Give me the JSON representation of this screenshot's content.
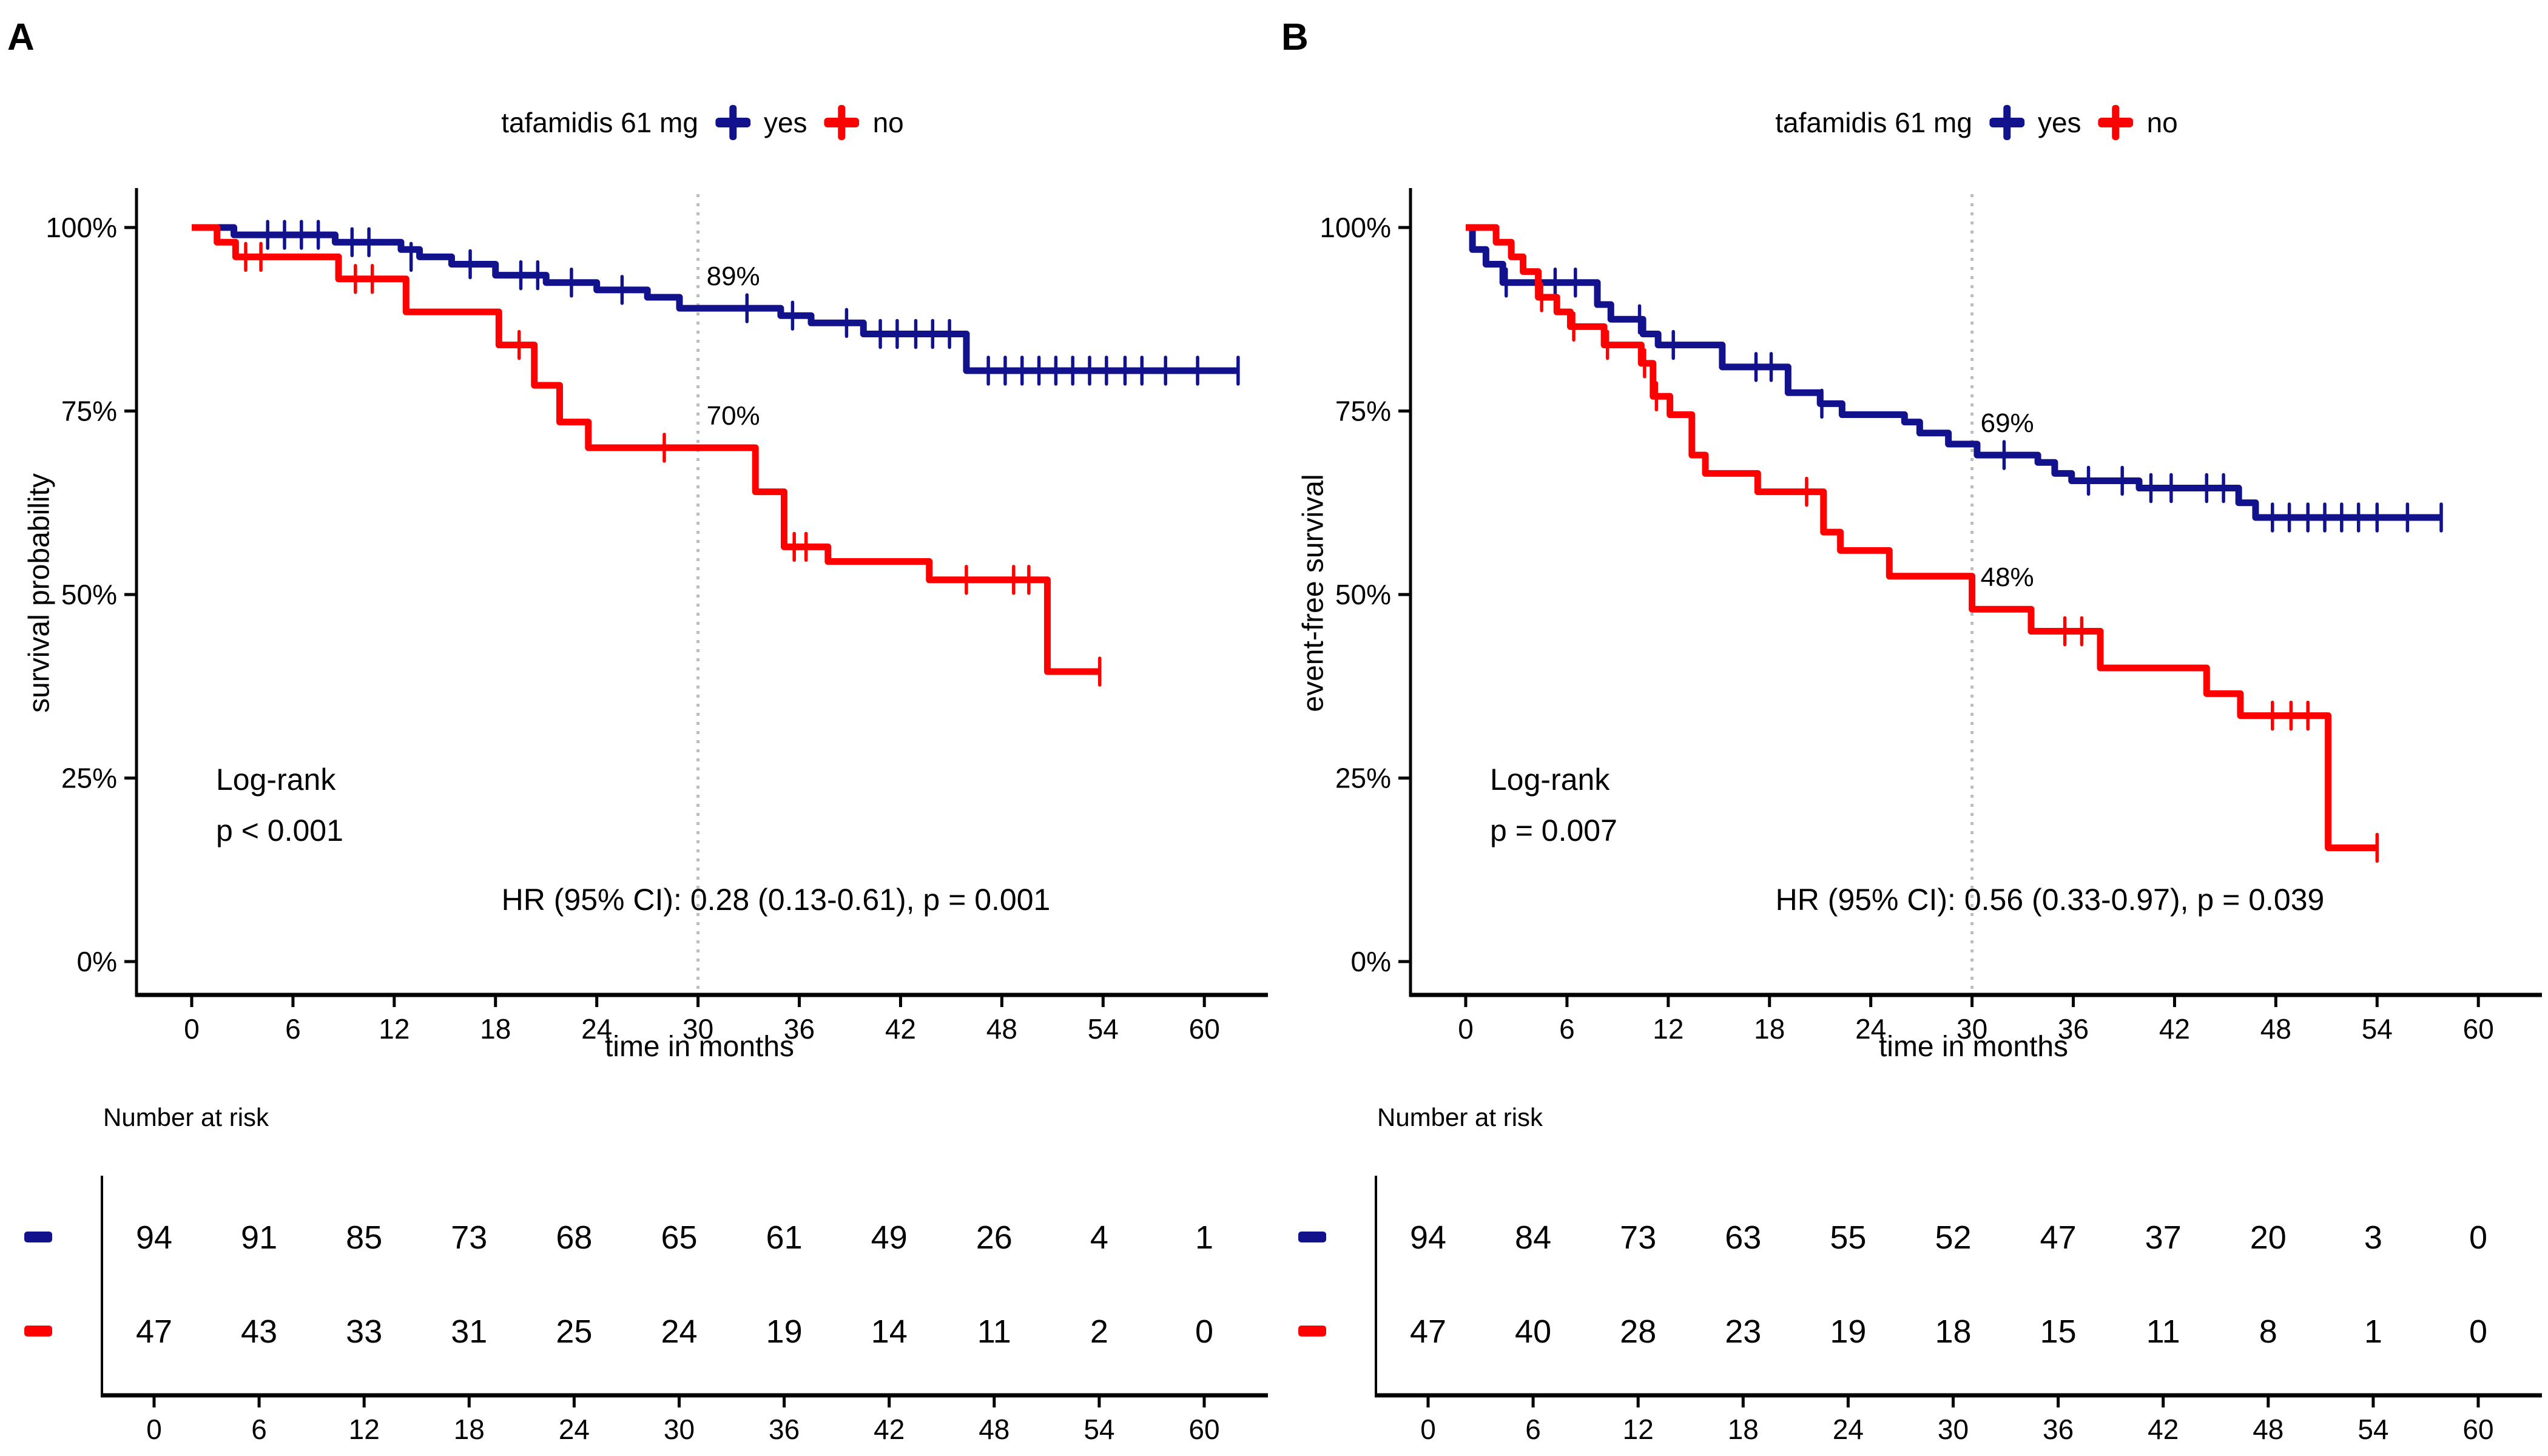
{
  "colors": {
    "navy": "#12128C",
    "red": "#FF0000",
    "axis": "#000000",
    "vline": "#BDBDBD",
    "text": "#000000"
  },
  "chart_data": [
    {
      "type": "km_step",
      "panel_label": "A",
      "legend": {
        "title": "tafamidis 61 mg",
        "items": [
          {
            "label": "yes",
            "color_key": "navy"
          },
          {
            "label": "no",
            "color_key": "red"
          }
        ]
      },
      "ylabel": "survival probability",
      "xlabel": "time in months",
      "x_ticks": [
        0,
        6,
        12,
        18,
        24,
        30,
        36,
        42,
        48,
        54,
        60
      ],
      "y_tick_labels": [
        "100%",
        "75%",
        "50%",
        "25%",
        "0%"
      ],
      "y_tick_values": [
        100,
        75,
        50,
        25,
        0
      ],
      "ylim": [
        0,
        100
      ],
      "xlim": [
        0,
        62
      ],
      "grid": false,
      "vline_month": 30,
      "logrank_label": "Log-rank",
      "logrank_p": "p < 0.001",
      "hr_text": "HR (95% CI): 0.28 (0.13-0.61), p = 0.001",
      "annotations": [
        {
          "label": "89%",
          "pct": 89
        },
        {
          "label": "70%",
          "pct": 70
        }
      ],
      "series": [
        {
          "name": "yes",
          "color_key": "navy",
          "end": 62,
          "steps": [
            [
              0,
              100
            ],
            [
              2.5,
              99
            ],
            [
              8.5,
              98
            ],
            [
              12.4,
              97
            ],
            [
              13.5,
              96
            ],
            [
              15.4,
              95
            ],
            [
              18,
              93.5
            ],
            [
              21,
              92.5
            ],
            [
              24,
              91.5
            ],
            [
              27,
              90.5
            ],
            [
              28.9,
              89
            ],
            [
              34.9,
              88
            ],
            [
              36.7,
              87
            ],
            [
              39.8,
              85.5
            ],
            [
              45.9,
              80.5
            ]
          ],
          "censors": [
            [
              4.5,
              99
            ],
            [
              5.5,
              99
            ],
            [
              6.5,
              99
            ],
            [
              7.5,
              99
            ],
            [
              9.5,
              98
            ],
            [
              10.5,
              98
            ],
            [
              13,
              96
            ],
            [
              16.5,
              95
            ],
            [
              19.5,
              93.5
            ],
            [
              20.5,
              93.5
            ],
            [
              22.5,
              92.5
            ],
            [
              25.5,
              91.5
            ],
            [
              32.9,
              89
            ],
            [
              35.6,
              88
            ],
            [
              38.8,
              87
            ],
            [
              40.8,
              85.5
            ],
            [
              41.8,
              85.5
            ],
            [
              42.9,
              85.5
            ],
            [
              43.9,
              85.5
            ],
            [
              44.9,
              85.5
            ],
            [
              47.2,
              80.5
            ],
            [
              48.2,
              80.5
            ],
            [
              49.2,
              80.5
            ],
            [
              50.2,
              80.5
            ],
            [
              51.2,
              80.5
            ],
            [
              52.2,
              80.5
            ],
            [
              53.2,
              80.5
            ],
            [
              54.2,
              80.5
            ],
            [
              55.3,
              80.5
            ],
            [
              56.3,
              80.5
            ],
            [
              57.7,
              80.5
            ],
            [
              59.6,
              80.5
            ],
            [
              62,
              80.5
            ]
          ]
        },
        {
          "name": "no",
          "color_key": "red",
          "end": 53.8,
          "steps": [
            [
              0,
              100
            ],
            [
              1.5,
              98
            ],
            [
              2.6,
              96
            ],
            [
              8.7,
              93
            ],
            [
              12.7,
              88.5
            ],
            [
              18.2,
              84
            ],
            [
              20.3,
              78.5
            ],
            [
              21.8,
              73.5
            ],
            [
              23.5,
              70
            ],
            [
              33.4,
              64
            ],
            [
              35.1,
              56.5
            ],
            [
              37.7,
              54.5
            ],
            [
              43.7,
              52
            ],
            [
              50.7,
              39.5
            ]
          ],
          "censors": [
            [
              3.2,
              96
            ],
            [
              4.1,
              96
            ],
            [
              9.7,
              93
            ],
            [
              10.7,
              93
            ],
            [
              19.4,
              84
            ],
            [
              28,
              70
            ],
            [
              35.7,
              56.5
            ],
            [
              36.4,
              56.5
            ],
            [
              45.9,
              52
            ],
            [
              48.7,
              52
            ],
            [
              49.6,
              52
            ],
            [
              53.8,
              39.5
            ]
          ]
        }
      ],
      "risk_table": {
        "title": "Number at risk",
        "times": [
          0,
          6,
          12,
          18,
          24,
          30,
          36,
          42,
          48,
          54,
          60
        ],
        "rows": [
          {
            "name": "yes",
            "color_key": "navy",
            "values": [
              94,
              91,
              85,
              73,
              68,
              65,
              61,
              49,
              26,
              4,
              1
            ]
          },
          {
            "name": "no",
            "color_key": "red",
            "values": [
              47,
              43,
              33,
              31,
              25,
              24,
              19,
              14,
              11,
              2,
              0
            ]
          }
        ]
      }
    },
    {
      "type": "km_step",
      "panel_label": "B",
      "legend": {
        "title": "tafamidis 61 mg",
        "items": [
          {
            "label": "yes",
            "color_key": "navy"
          },
          {
            "label": "no",
            "color_key": "red"
          }
        ]
      },
      "ylabel": "event-free survival",
      "xlabel": "time in months",
      "x_ticks": [
        0,
        6,
        12,
        18,
        24,
        30,
        36,
        42,
        48,
        54,
        60
      ],
      "y_tick_labels": [
        "100%",
        "75%",
        "50%",
        "25%",
        "0%"
      ],
      "y_tick_values": [
        100,
        75,
        50,
        25,
        0
      ],
      "ylim": [
        0,
        100
      ],
      "xlim": [
        0,
        62
      ],
      "grid": false,
      "vline_month": 30,
      "logrank_label": "Log-rank",
      "logrank_p": "p = 0.007",
      "hr_text": "HR (95% CI): 0.56 (0.33-0.97), p = 0.039",
      "annotations": [
        {
          "label": "69%",
          "pct": 69
        },
        {
          "label": "48%",
          "pct": 48
        }
      ],
      "series": [
        {
          "name": "yes",
          "color_key": "navy",
          "end": 57.8,
          "steps": [
            [
              0,
              100
            ],
            [
              0.4,
              97
            ],
            [
              1.2,
              95
            ],
            [
              2.2,
              92.5
            ],
            [
              7.8,
              89.5
            ],
            [
              8.6,
              87.5
            ],
            [
              10.5,
              85.5
            ],
            [
              11.4,
              84
            ],
            [
              15.2,
              81
            ],
            [
              19.1,
              77.5
            ],
            [
              21,
              76
            ],
            [
              22.3,
              74.5
            ],
            [
              26,
              73.5
            ],
            [
              26.9,
              72
            ],
            [
              28.6,
              70.5
            ],
            [
              30.3,
              69
            ],
            [
              33.9,
              68
            ],
            [
              34.9,
              66.5
            ],
            [
              35.9,
              65.5
            ],
            [
              39.9,
              64.5
            ],
            [
              45.8,
              62.5
            ],
            [
              46.8,
              60.5
            ]
          ],
          "censors": [
            [
              2.4,
              92.5
            ],
            [
              5.3,
              92.5
            ],
            [
              6.5,
              92.5
            ],
            [
              10.3,
              87.5
            ],
            [
              12.3,
              84
            ],
            [
              17.2,
              81
            ],
            [
              18.1,
              81
            ],
            [
              21.1,
              76
            ],
            [
              31.9,
              69
            ],
            [
              36.9,
              65.5
            ],
            [
              38.9,
              65.5
            ],
            [
              40.6,
              64.5
            ],
            [
              41.8,
              64.5
            ],
            [
              43.9,
              64.5
            ],
            [
              44.9,
              64.5
            ],
            [
              47.8,
              60.5
            ],
            [
              48.8,
              60.5
            ],
            [
              49.9,
              60.5
            ],
            [
              50.9,
              60.5
            ],
            [
              51.9,
              60.5
            ],
            [
              52.9,
              60.5
            ],
            [
              54,
              60.5
            ],
            [
              55.8,
              60.5
            ],
            [
              57.8,
              60.5
            ]
          ]
        },
        {
          "name": "no",
          "color_key": "red",
          "end": 54,
          "steps": [
            [
              0,
              100
            ],
            [
              1.8,
              98
            ],
            [
              2.7,
              96
            ],
            [
              3.4,
              94
            ],
            [
              4.3,
              90.5
            ],
            [
              5.4,
              88.5
            ],
            [
              6.2,
              86.5
            ],
            [
              8.2,
              84
            ],
            [
              10.4,
              81.5
            ],
            [
              11.1,
              77
            ],
            [
              12.1,
              74.5
            ],
            [
              13.4,
              69
            ],
            [
              14.2,
              66.5
            ],
            [
              17.3,
              64
            ],
            [
              21.2,
              58.5
            ],
            [
              22.2,
              56
            ],
            [
              25.1,
              52.5
            ],
            [
              30,
              48
            ],
            [
              33.5,
              45
            ],
            [
              37.6,
              40
            ],
            [
              43.9,
              36.5
            ],
            [
              45.9,
              33.5
            ],
            [
              51.1,
              15.5
            ]
          ],
          "censors": [
            [
              4.5,
              90.5
            ],
            [
              6.4,
              86.5
            ],
            [
              8.4,
              84
            ],
            [
              10.6,
              81.5
            ],
            [
              11.3,
              77
            ],
            [
              20.2,
              64
            ],
            [
              35.5,
              45
            ],
            [
              36.5,
              45
            ],
            [
              47.8,
              33.5
            ],
            [
              48.9,
              33.5
            ],
            [
              49.9,
              33.5
            ],
            [
              54,
              15.5
            ]
          ]
        }
      ],
      "risk_table": {
        "title": "Number at risk",
        "times": [
          0,
          6,
          12,
          18,
          24,
          30,
          36,
          42,
          48,
          54,
          60
        ],
        "rows": [
          {
            "name": "yes",
            "color_key": "navy",
            "values": [
              94,
              84,
              73,
              63,
              55,
              52,
              47,
              37,
              20,
              3,
              0
            ]
          },
          {
            "name": "no",
            "color_key": "red",
            "values": [
              47,
              40,
              28,
              23,
              19,
              18,
              15,
              11,
              8,
              1,
              0
            ]
          }
        ]
      }
    }
  ]
}
